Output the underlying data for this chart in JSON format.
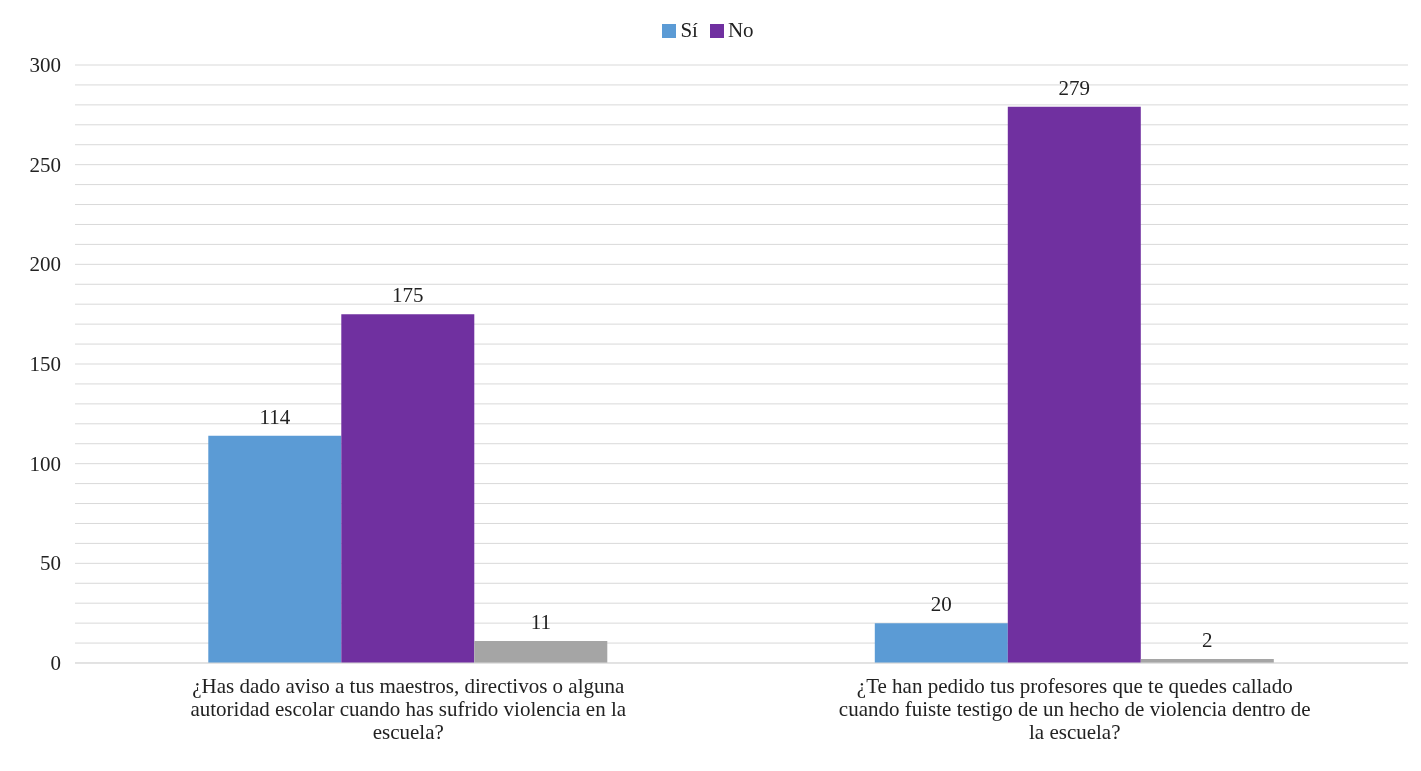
{
  "chart_data": {
    "type": "bar",
    "categories": [
      "¿Has dado aviso a tus maestros, directivos o alguna autoridad escolar cuando has sufrido violencia en la escuela?",
      "¿Te han pedido tus profesores que te quedes callado cuando fuiste testigo de un hecho de violencia dentro de la escuela?"
    ],
    "series": [
      {
        "name": "Sí",
        "color": "#5b9bd5",
        "values": [
          114,
          20
        ]
      },
      {
        "name": "No",
        "color": "#7030a0",
        "values": [
          175,
          279
        ]
      },
      {
        "color": "#a5a5a5",
        "values": [
          11,
          2
        ]
      }
    ],
    "ylim": [
      0,
      300
    ],
    "yticks": [
      0,
      {
        "value": 10,
        "label": null
      },
      {
        "value": 20,
        "label": null
      },
      {
        "value": 30,
        "label": null
      },
      {
        "value": 40,
        "label": null
      },
      50,
      {
        "value": 60,
        "label": null
      },
      {
        "value": 70,
        "label": null
      },
      {
        "value": 80,
        "label": null
      },
      {
        "value": 90,
        "label": null
      },
      100,
      {
        "value": 110,
        "label": null
      },
      {
        "value": 120,
        "label": null
      },
      {
        "value": 130,
        "label": null
      },
      {
        "value": 140,
        "label": null
      },
      150,
      {
        "value": 160,
        "label": null
      },
      {
        "value": 170,
        "label": null
      },
      {
        "value": 180,
        "label": null
      },
      {
        "value": 190,
        "label": null
      },
      200,
      {
        "value": 210,
        "label": null
      },
      {
        "value": 220,
        "label": null
      },
      {
        "value": 230,
        "label": null
      },
      {
        "value": 240,
        "label": null
      },
      250,
      {
        "value": 260,
        "label": null
      },
      {
        "value": 270,
        "label": null
      },
      {
        "value": 280,
        "label": null
      },
      {
        "value": 290,
        "label": null
      },
      300
    ],
    "grid": "y",
    "legend": "top",
    "data_labels": true
  }
}
